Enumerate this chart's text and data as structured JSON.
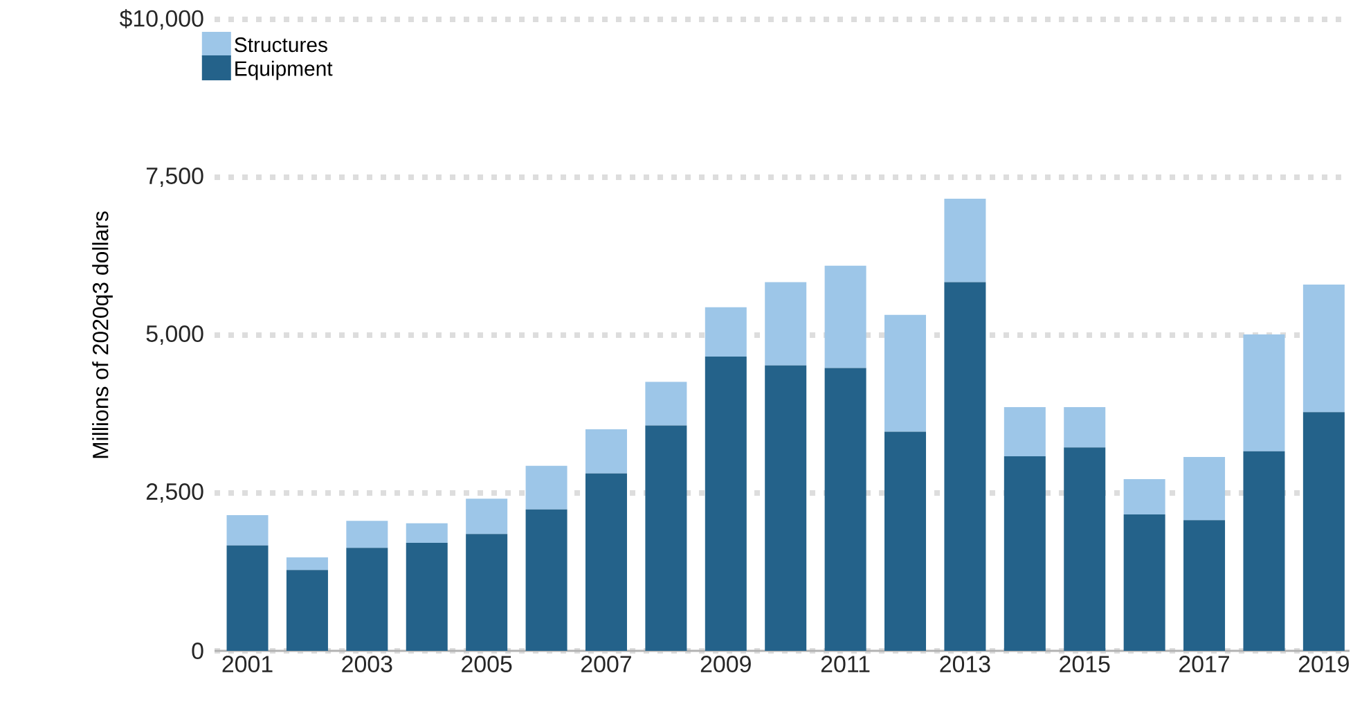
{
  "chart_data": {
    "type": "bar",
    "stacked": true,
    "ylabel": "Millions of 2020q3 dollars",
    "categories": [
      "2001",
      null,
      "2003",
      null,
      "2005",
      null,
      "2007",
      null,
      "2009",
      null,
      "2011",
      null,
      "2013",
      null,
      "2015",
      null,
      "2017",
      null,
      "2019"
    ],
    "series": [
      {
        "name": "Equipment",
        "color": "#24628a",
        "values": [
          1670,
          1280,
          1630,
          1710,
          1850,
          2240,
          2810,
          3570,
          4660,
          4520,
          4480,
          3470,
          5840,
          3080,
          3220,
          2160,
          2070,
          3160,
          3780
        ]
      },
      {
        "name": "Structures",
        "color": "#9dc6e8",
        "values": [
          480,
          200,
          430,
          310,
          560,
          690,
          700,
          690,
          780,
          1320,
          1620,
          1850,
          1320,
          780,
          640,
          560,
          1000,
          1850,
          2020
        ]
      }
    ],
    "ylim": [
      0,
      10000
    ],
    "yticks": [
      0,
      {
        "value": 2500,
        "label": "2,500"
      },
      {
        "value": 5000,
        "label": "5,000"
      },
      {
        "value": 7500,
        "label": "7,500"
      },
      {
        "value": 10000,
        "label": "$10,000"
      }
    ],
    "grid": "y",
    "legend": "top left"
  }
}
